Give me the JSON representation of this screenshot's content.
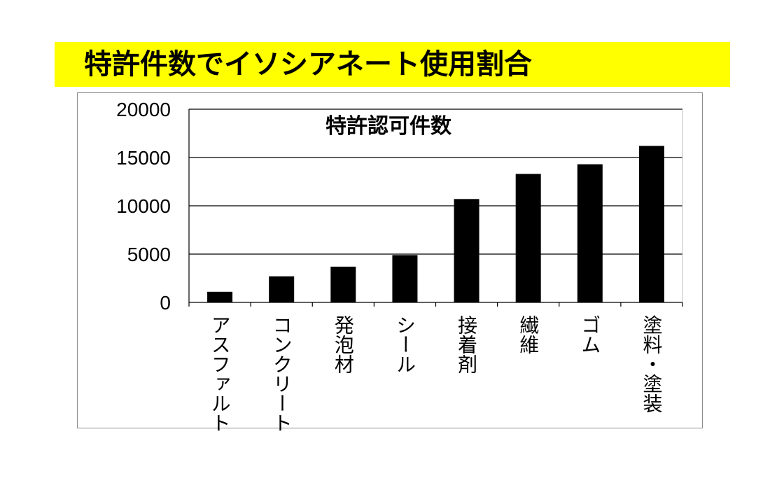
{
  "page_title": "特許件数でイソシアネート使用割合",
  "chart_data": {
    "type": "bar",
    "title": "特許認可件数",
    "xlabel": "",
    "ylabel": "",
    "categories": [
      "アスファルト",
      "コンクリート",
      "発泡材",
      "シール",
      "接着剤",
      "繊維",
      "ゴム",
      "塗料・塗装"
    ],
    "values": [
      1100,
      2700,
      3700,
      4900,
      10700,
      13300,
      14300,
      16200
    ],
    "ylim": [
      0,
      20000
    ],
    "yticks": [
      0,
      5000,
      10000,
      15000,
      20000
    ],
    "grid": true,
    "bar_color": "#000000"
  },
  "colors": {
    "title_band": "#ffff00",
    "grid": "#000000",
    "frame": "#8c8c8c"
  }
}
